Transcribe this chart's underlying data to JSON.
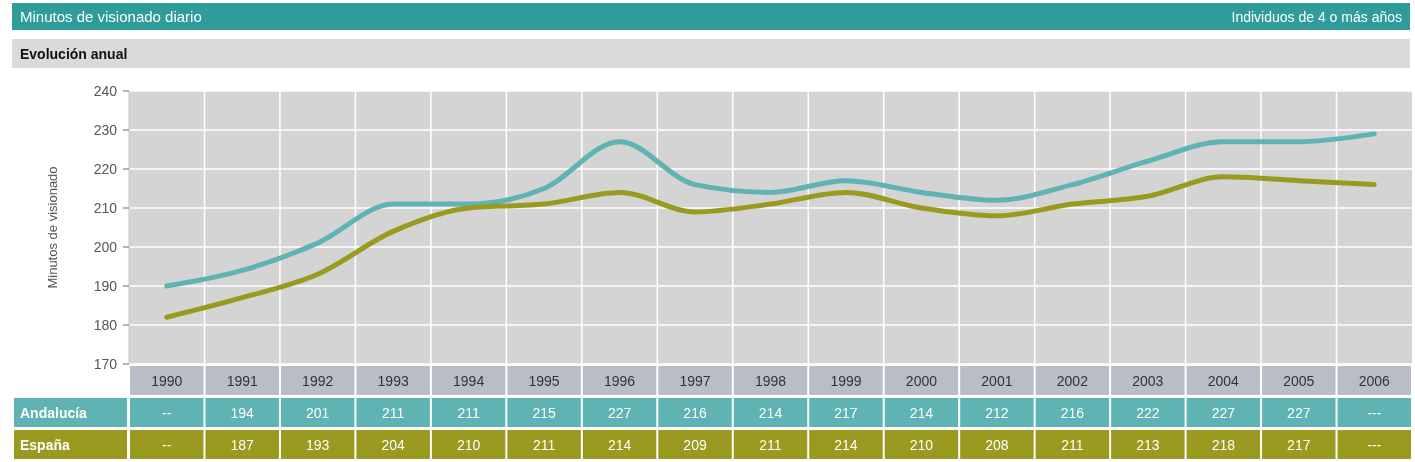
{
  "chart_data": {
    "type": "line",
    "title": "Minutos de visionado diario",
    "subtitle": "Evolución anual",
    "ylabel": "Minutos de visionado",
    "annotations": [
      "Individuos de 4 o más años"
    ],
    "categories": [
      "1990",
      "1991",
      "1992",
      "1993",
      "1994",
      "1995",
      "1996",
      "1997",
      "1998",
      "1999",
      "2000",
      "2001",
      "2002",
      "2003",
      "2004",
      "2005",
      "2006"
    ],
    "series": [
      {
        "name": "Andalucía",
        "color": "#5fb3b3",
        "values": [
          190,
          194,
          201,
          211,
          211,
          215,
          227,
          216,
          214,
          217,
          214,
          212,
          216,
          222,
          227,
          227,
          229
        ],
        "value_labels": [
          "--",
          "194",
          "201",
          "211",
          "211",
          "215",
          "227",
          "216",
          "214",
          "217",
          "214",
          "212",
          "216",
          "222",
          "227",
          "227",
          "---"
        ]
      },
      {
        "name": "España",
        "color": "#9a9a20",
        "values": [
          182,
          187,
          193,
          204,
          210,
          211,
          214,
          209,
          211,
          214,
          210,
          208,
          211,
          213,
          218,
          217,
          216
        ],
        "value_labels": [
          "--",
          "187",
          "193",
          "204",
          "210",
          "211",
          "214",
          "209",
          "211",
          "214",
          "210",
          "208",
          "211",
          "213",
          "218",
          "217",
          "---"
        ]
      }
    ],
    "ylim": [
      170,
      240
    ],
    "yticks": [
      170,
      180,
      190,
      200,
      210,
      220,
      230,
      240
    ],
    "grid": true,
    "legend": "bottom left"
  }
}
